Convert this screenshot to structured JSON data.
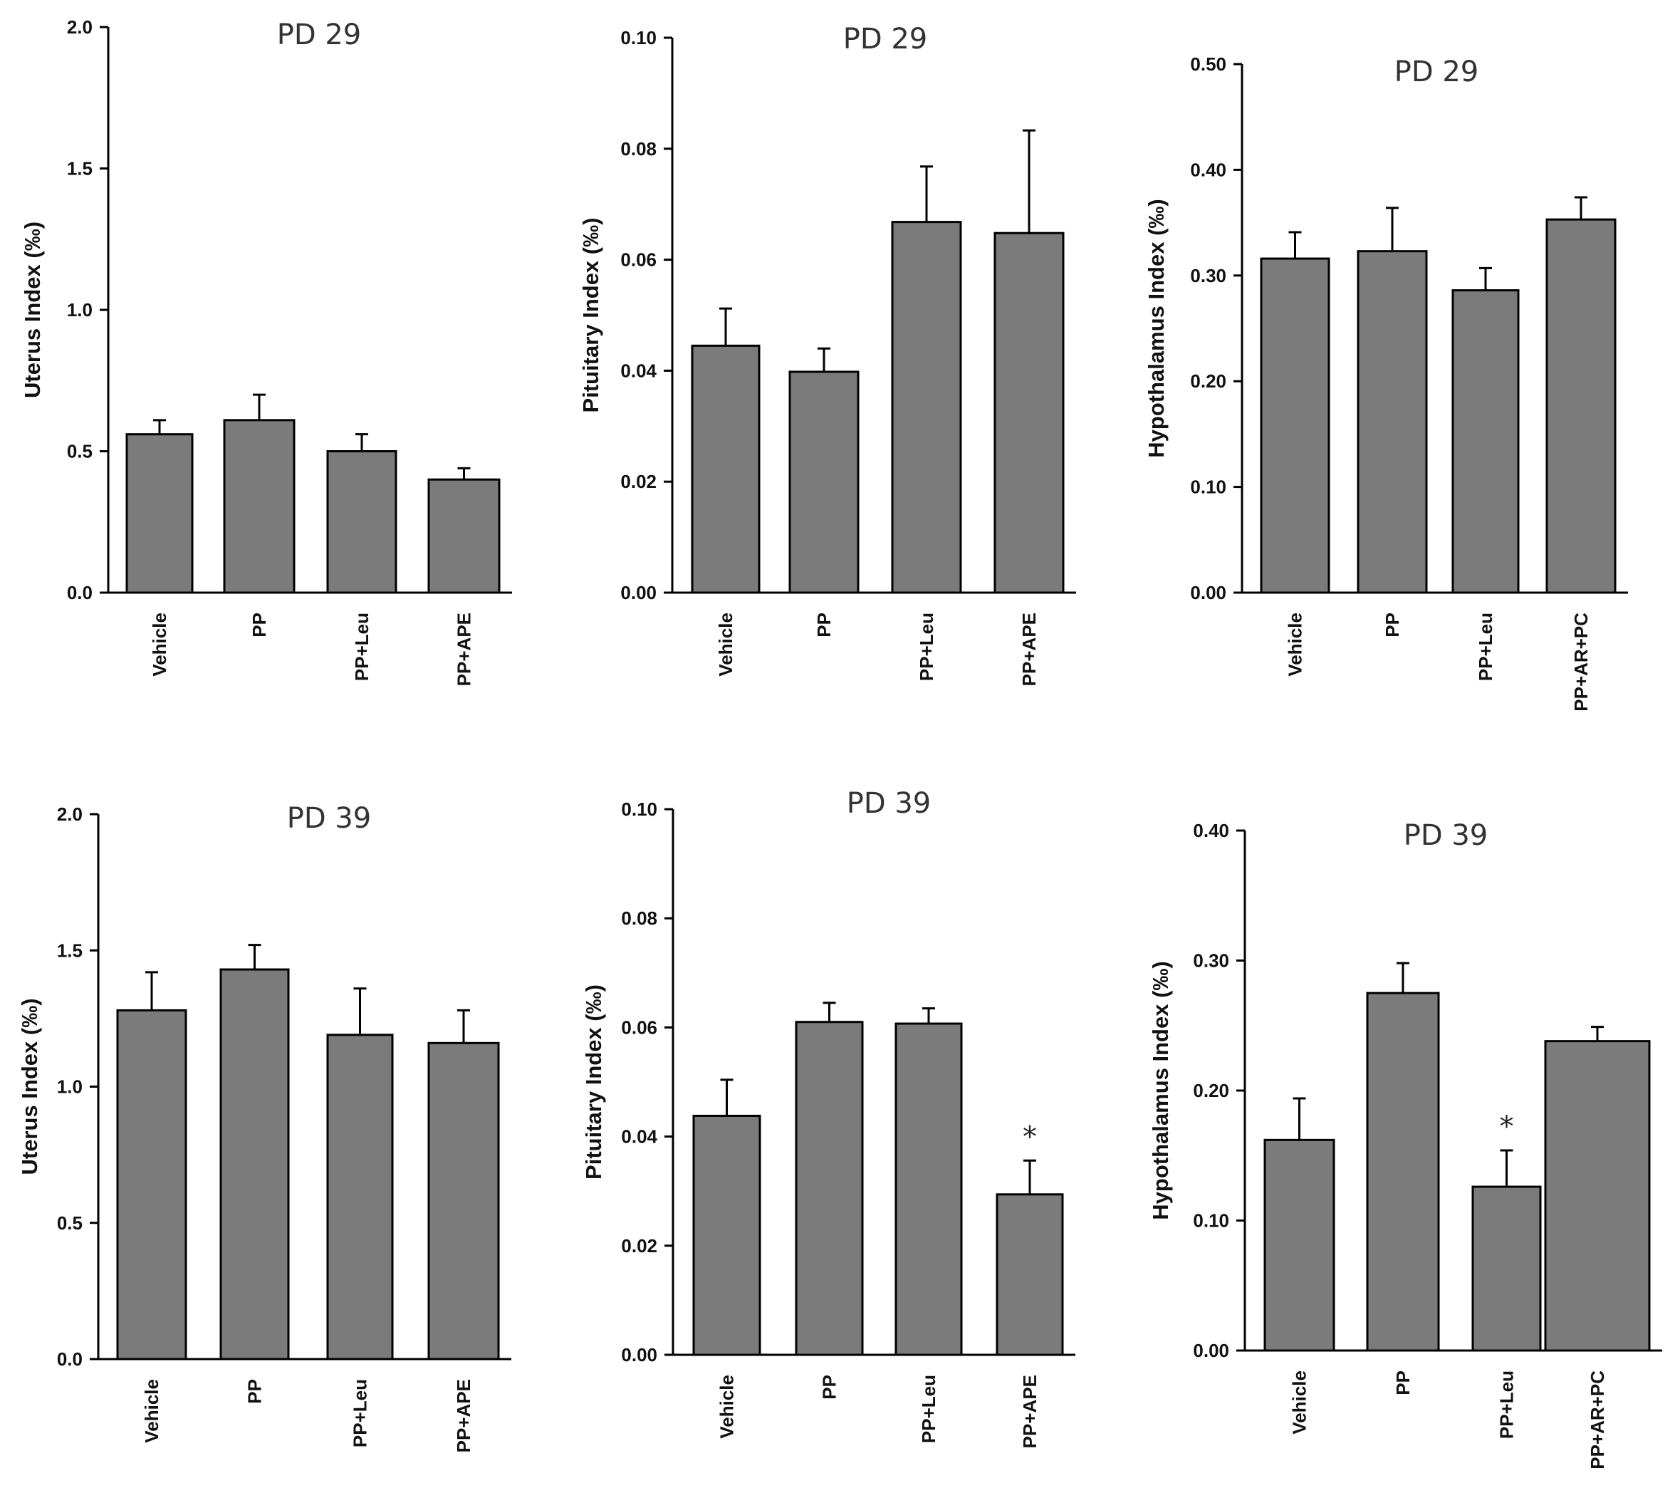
{
  "chart_data": [
    {
      "type": "bar",
      "title": "PD 29",
      "xlabel": "",
      "ylabel": "Uterus Index (‰)",
      "categories": [
        "Vehicle",
        "PP",
        "PP+Leu",
        "PP+APE"
      ],
      "values": [
        0.56,
        0.61,
        0.5,
        0.4
      ],
      "errors": [
        0.05,
        0.09,
        0.06,
        0.04
      ],
      "ylim": [
        0,
        2.0
      ],
      "yticks": [
        "0.0",
        "0.5",
        "1.0",
        "1.5",
        "2.0"
      ],
      "yticks_values": [
        0,
        0.5,
        1.0,
        1.5,
        2.0
      ],
      "annotations": [
        "",
        "",
        "",
        ""
      ]
    },
    {
      "type": "bar",
      "title": "PD 29",
      "xlabel": "",
      "ylabel": "Pituitary Index (‰)",
      "categories": [
        "Vehicle",
        "PP",
        "PP+Leu",
        "PP+APE"
      ],
      "values": [
        0.0445,
        0.0398,
        0.0668,
        0.0648
      ],
      "errors": [
        0.0067,
        0.0042,
        0.01,
        0.0185
      ],
      "ylim": [
        0,
        0.1
      ],
      "yticks": [
        "0.00",
        "0.02",
        "0.04",
        "0.06",
        "0.08",
        "0.10"
      ],
      "yticks_values": [
        0,
        0.02,
        0.04,
        0.06,
        0.08,
        0.1
      ],
      "annotations": [
        "",
        "",
        "",
        ""
      ]
    },
    {
      "type": "bar",
      "title": "PD 29",
      "xlabel": "",
      "ylabel": "Hypothalamus Index (‰)",
      "categories": [
        "Vehicle",
        "PP",
        "PP+Leu",
        "PP+AR+PC"
      ],
      "values": [
        0.316,
        0.323,
        0.286,
        0.353
      ],
      "errors": [
        0.025,
        0.041,
        0.021,
        0.021
      ],
      "ylim": [
        0,
        0.5
      ],
      "yticks": [
        "0.00",
        "0.10",
        "0.20",
        "0.30",
        "0.40",
        "0.50"
      ],
      "yticks_values": [
        0,
        0.1,
        0.2,
        0.3,
        0.4,
        0.5
      ],
      "annotations": [
        "",
        "",
        "",
        ""
      ]
    },
    {
      "type": "bar",
      "title": "PD 39",
      "xlabel": "",
      "ylabel": "Uterus Index (‰)",
      "categories": [
        "Vehicle",
        "PP",
        "PP+Leu",
        "PP+APE"
      ],
      "values": [
        1.28,
        1.43,
        1.19,
        1.16
      ],
      "errors": [
        0.14,
        0.09,
        0.17,
        0.12
      ],
      "ylim": [
        0,
        2.0
      ],
      "yticks": [
        "0.0",
        "0.5",
        "1.0",
        "1.5",
        "2.0"
      ],
      "yticks_values": [
        0,
        0.5,
        1.0,
        1.5,
        2.0
      ],
      "annotations": [
        "",
        "",
        "",
        ""
      ]
    },
    {
      "type": "bar",
      "title": "PD 39",
      "xlabel": "",
      "ylabel": "Pituitary Index (‰)",
      "categories": [
        "Vehicle",
        "PP",
        "PP+Leu",
        "PP+APE"
      ],
      "values": [
        0.0438,
        0.061,
        0.0607,
        0.0294
      ],
      "errors": [
        0.0066,
        0.0035,
        0.0028,
        0.0062
      ],
      "ylim": [
        0,
        0.1
      ],
      "yticks": [
        "0.00",
        "0.02",
        "0.04",
        "0.06",
        "0.08",
        "0.10"
      ],
      "yticks_values": [
        0,
        0.02,
        0.04,
        0.06,
        0.08,
        0.1
      ],
      "annotations": [
        "",
        "",
        "",
        "*"
      ]
    },
    {
      "type": "bar",
      "title": "PD 39",
      "xlabel": "",
      "ylabel": "Hypothalamus Index (‰)",
      "categories": [
        "Vehicle",
        "PP",
        "PP+Leu",
        "PP+AR+PC"
      ],
      "values": [
        0.162,
        0.275,
        0.126,
        0.238
      ],
      "errors": [
        0.032,
        0.023,
        0.028,
        0.011
      ],
      "ylim": [
        0,
        0.4
      ],
      "yticks": [
        "0.00",
        "0.10",
        "0.20",
        "0.30",
        "0.40"
      ],
      "yticks_values": [
        0,
        0.1,
        0.2,
        0.3,
        0.4
      ],
      "annotations": [
        "",
        "",
        "*",
        ""
      ]
    }
  ]
}
